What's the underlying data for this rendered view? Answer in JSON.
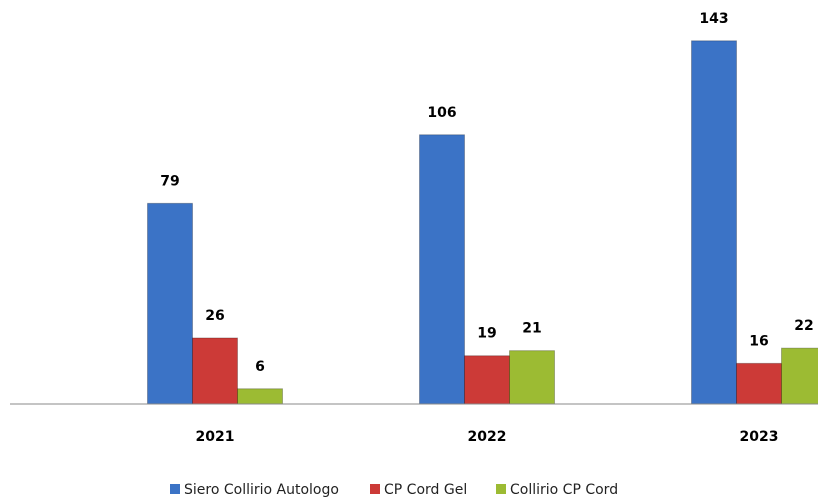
{
  "chart_data": {
    "type": "bar",
    "categories": [
      "2021",
      "2022",
      "2023"
    ],
    "series": [
      {
        "name": "Siero Collirio Autologo",
        "color": "#3b73c6",
        "values": [
          79,
          106,
          143
        ]
      },
      {
        "name": "CP Cord Gel",
        "color": "#cc3a37",
        "values": [
          26,
          19,
          16
        ]
      },
      {
        "name": "Collirio CP Cord",
        "color": "#9cbb33",
        "values": [
          6,
          21,
          22
        ]
      }
    ],
    "ylim": [
      0,
      150
    ],
    "legend": "bottom"
  }
}
